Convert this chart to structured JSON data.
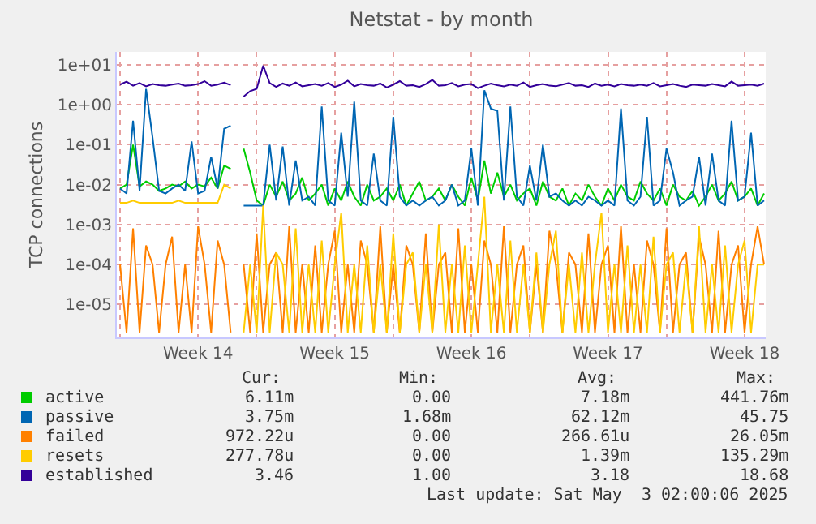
{
  "chart_data": {
    "type": "line",
    "title": "Netstat - by month",
    "ylabel": "TCP connections",
    "x": [
      "2025-03-31T00:00",
      "2025-03-31T08:00",
      "2025-03-31T16:00",
      "2025-04-01T00:00",
      "2025-04-01T08:00",
      "2025-04-01T16:00",
      "2025-04-02T00:00",
      "2025-04-02T08:00",
      "2025-04-02T16:00",
      "2025-04-03T00:00",
      "2025-04-03T08:00",
      "2025-04-03T16:00",
      "2025-04-04T00:00",
      "2025-04-04T08:00",
      "2025-04-04T16:00",
      "2025-04-05T00:00",
      "2025-04-05T08:00",
      "2025-04-05T16:00",
      "2025-04-06T00:00",
      "2025-04-06T08:00",
      "2025-04-06T16:00",
      "2025-04-07T00:00",
      "2025-04-07T08:00",
      "2025-04-07T16:00",
      "2025-04-08T00:00",
      "2025-04-08T08:00",
      "2025-04-08T16:00",
      "2025-04-09T00:00",
      "2025-04-09T08:00",
      "2025-04-09T16:00",
      "2025-04-10T00:00",
      "2025-04-10T08:00",
      "2025-04-10T16:00",
      "2025-04-11T00:00",
      "2025-04-11T08:00",
      "2025-04-11T16:00",
      "2025-04-12T00:00",
      "2025-04-12T08:00",
      "2025-04-12T16:00",
      "2025-04-13T00:00",
      "2025-04-13T08:00",
      "2025-04-13T16:00",
      "2025-04-14T00:00",
      "2025-04-14T08:00",
      "2025-04-14T16:00",
      "2025-04-15T00:00",
      "2025-04-15T08:00",
      "2025-04-15T16:00",
      "2025-04-16T00:00",
      "2025-04-16T08:00",
      "2025-04-16T16:00",
      "2025-04-17T00:00",
      "2025-04-17T08:00",
      "2025-04-17T16:00",
      "2025-04-18T00:00",
      "2025-04-18T08:00",
      "2025-04-18T16:00",
      "2025-04-19T00:00",
      "2025-04-19T08:00",
      "2025-04-19T16:00",
      "2025-04-20T00:00",
      "2025-04-20T08:00",
      "2025-04-20T16:00",
      "2025-04-21T00:00",
      "2025-04-21T08:00",
      "2025-04-21T16:00",
      "2025-04-22T00:00",
      "2025-04-22T08:00",
      "2025-04-22T16:00",
      "2025-04-23T00:00",
      "2025-04-23T08:00",
      "2025-04-23T16:00",
      "2025-04-24T00:00",
      "2025-04-24T08:00",
      "2025-04-24T16:00",
      "2025-04-25T00:00",
      "2025-04-25T08:00",
      "2025-04-25T16:00",
      "2025-04-26T00:00",
      "2025-04-26T08:00",
      "2025-04-26T16:00",
      "2025-04-27T00:00",
      "2025-04-27T08:00",
      "2025-04-27T16:00",
      "2025-04-28T00:00",
      "2025-04-28T08:00",
      "2025-04-28T16:00",
      "2025-04-29T00:00",
      "2025-04-29T08:00",
      "2025-04-29T16:00",
      "2025-04-30T00:00",
      "2025-04-30T08:00",
      "2025-04-30T16:00",
      "2025-05-01T00:00",
      "2025-05-01T08:00",
      "2025-05-01T16:00",
      "2025-05-02T00:00",
      "2025-05-02T08:00",
      "2025-05-02T16:00",
      "2025-05-03T00:00"
    ],
    "series": [
      {
        "name": "active",
        "color": "#00cc00",
        "values": [
          0.008,
          0.01,
          0.1,
          0.009,
          0.012,
          0.01,
          0.007,
          0.008,
          0.01,
          0.009,
          0.012,
          0.008,
          0.01,
          0.009,
          0.015,
          0.008,
          0.03,
          0.025,
          null,
          0.08,
          0.02,
          0.004,
          0.003,
          0.01,
          0.005,
          0.012,
          0.004,
          0.006,
          0.015,
          0.004,
          0.006,
          0.01,
          0.003,
          0.008,
          0.004,
          0.012,
          0.005,
          0.003,
          0.01,
          0.004,
          0.005,
          0.008,
          0.004,
          0.01,
          0.003,
          0.006,
          0.012,
          0.004,
          0.005,
          0.008,
          0.004,
          0.01,
          0.005,
          0.003,
          0.015,
          0.004,
          0.04,
          0.006,
          0.02,
          0.005,
          0.01,
          0.004,
          0.006,
          0.008,
          0.003,
          0.012,
          0.005,
          0.004,
          0.008,
          0.003,
          0.006,
          0.004,
          0.01,
          0.005,
          0.003,
          0.008,
          0.004,
          0.01,
          0.005,
          0.004,
          0.012,
          0.006,
          0.004,
          0.008,
          0.003,
          0.01,
          0.005,
          0.004,
          0.007,
          0.003,
          0.005,
          0.01,
          0.004,
          0.006,
          0.012,
          0.004,
          0.005,
          0.008,
          0.003,
          0.006
        ]
      },
      {
        "name": "passive",
        "color": "#0066b3",
        "values": [
          0.008,
          0.006,
          0.4,
          0.007,
          2.5,
          0.15,
          0.007,
          0.006,
          0.008,
          0.01,
          0.007,
          0.12,
          0.006,
          0.007,
          0.05,
          0.008,
          0.25,
          0.3,
          null,
          0.003,
          0.003,
          0.003,
          0.003,
          0.1,
          0.004,
          0.09,
          0.003,
          0.04,
          0.004,
          0.005,
          0.003,
          0.9,
          0.004,
          0.003,
          0.2,
          0.005,
          1.2,
          0.004,
          0.003,
          0.06,
          0.004,
          0.003,
          0.5,
          0.005,
          0.003,
          0.004,
          0.003,
          0.004,
          0.005,
          0.003,
          0.004,
          0.01,
          0.003,
          0.004,
          0.08,
          0.003,
          2.3,
          0.8,
          0.7,
          0.004,
          0.9,
          0.005,
          0.003,
          0.03,
          0.004,
          0.1,
          0.005,
          0.006,
          0.004,
          0.003,
          0.004,
          0.003,
          0.005,
          0.004,
          0.003,
          0.004,
          0.003,
          0.8,
          0.004,
          0.003,
          0.005,
          0.5,
          0.003,
          0.004,
          0.08,
          0.02,
          0.003,
          0.004,
          0.005,
          0.05,
          0.003,
          0.06,
          0.004,
          0.003,
          0.4,
          0.004,
          0.005,
          0.2,
          0.003,
          0.004
        ]
      },
      {
        "name": "failed",
        "color": "#ff8000",
        "values": [
          0.0001,
          2e-06,
          0.0008,
          2e-06,
          0.0003,
          0.0001,
          2e-06,
          0.0001,
          0.0005,
          2e-06,
          0.0001,
          2e-06,
          0.0009,
          0.0001,
          2e-06,
          0.0004,
          0.0001,
          2e-06,
          null,
          0.0001,
          2e-06,
          0.0006,
          2e-06,
          0.0001,
          0.0002,
          2e-06,
          0.0009,
          2e-06,
          0.0001,
          2e-06,
          0.0003,
          2e-06,
          0.0001,
          0.0007,
          2e-06,
          0.0001,
          2e-06,
          0.0004,
          0.0001,
          2e-06,
          0.0009,
          2e-06,
          0.0001,
          2e-06,
          0.0003,
          0.0001,
          2e-06,
          0.0006,
          2e-06,
          0.0001,
          0.0002,
          2e-06,
          0.0008,
          2e-06,
          0.0001,
          2e-06,
          0.0004,
          0.0001,
          2e-06,
          0.0009,
          2e-06,
          0.0001,
          0.0003,
          2e-06,
          0.0001,
          2e-06,
          0.0007,
          0.0001,
          2e-06,
          0.0002,
          0.0001,
          2e-06,
          0.0006,
          2e-06,
          0.0001,
          0.0003,
          2e-06,
          0.0009,
          2e-06,
          0.0001,
          2e-06,
          0.0004,
          0.0001,
          2e-06,
          0.0008,
          2e-06,
          0.0001,
          0.0002,
          2e-06,
          0.0005,
          0.0001,
          2e-06,
          0.0007,
          2e-06,
          0.0001,
          0.0003,
          2e-06,
          0.0001,
          0.0009,
          0.0001
        ]
      },
      {
        "name": "resets",
        "color": "#ffcc00",
        "values": [
          0.0035,
          0.0035,
          0.004,
          0.0035,
          0.0035,
          0.0035,
          0.0035,
          0.0035,
          0.0035,
          0.004,
          0.0035,
          0.0035,
          0.0035,
          0.0035,
          0.0035,
          0.0035,
          0.01,
          0.008,
          null,
          2e-06,
          0.0001,
          2e-06,
          0.003,
          2e-06,
          0.0002,
          0.0001,
          2e-06,
          0.0008,
          2e-06,
          0.0001,
          2e-06,
          0.0004,
          2e-06,
          0.0001,
          0.002,
          2e-06,
          0.0001,
          2e-06,
          0.0003,
          2e-06,
          0.0001,
          2e-06,
          0.0006,
          2e-06,
          0.0001,
          0.0002,
          2e-06,
          0.0001,
          2e-06,
          0.001,
          2e-06,
          0.0001,
          2e-06,
          0.0003,
          2e-06,
          0.0001,
          0.005,
          2e-06,
          0.0001,
          2e-06,
          0.0004,
          2e-06,
          0.0001,
          2e-06,
          0.0002,
          2e-06,
          0.0001,
          0.0007,
          2e-06,
          0.0001,
          2e-06,
          0.0002,
          2e-06,
          0.0001,
          0.002,
          2e-06,
          0.0001,
          2e-06,
          0.0003,
          2e-06,
          0.0001,
          2e-06,
          0.0005,
          2e-06,
          0.0001,
          0.0002,
          2e-06,
          0.0001,
          2e-06,
          0.0009,
          2e-06,
          0.0001,
          2e-06,
          0.0003,
          2e-06,
          0.0001,
          0.0004,
          2e-06,
          0.0001,
          0.0001
        ]
      },
      {
        "name": "established",
        "color": "#330099",
        "values": [
          3.2,
          3.8,
          3.0,
          3.5,
          2.9,
          3.3,
          3.1,
          3.0,
          3.2,
          3.4,
          3.0,
          3.1,
          3.3,
          3.9,
          3.0,
          3.2,
          3.6,
          3.1,
          null,
          1.6,
          2.2,
          2.5,
          9.5,
          3.5,
          2.8,
          3.4,
          3.0,
          3.6,
          2.9,
          3.1,
          3.3,
          3.0,
          3.5,
          2.8,
          3.2,
          4.0,
          2.9,
          3.3,
          3.1,
          3.0,
          3.4,
          2.7,
          3.2,
          3.9,
          3.0,
          3.1,
          2.8,
          3.3,
          4.2,
          3.0,
          3.1,
          3.5,
          2.9,
          3.2,
          3.3,
          2.6,
          3.0,
          3.4,
          3.1,
          2.9,
          3.2,
          3.0,
          3.6,
          2.8,
          3.1,
          3.3,
          3.0,
          2.9,
          3.2,
          3.5,
          3.0,
          3.1,
          2.8,
          3.4,
          3.0,
          3.2,
          2.9,
          3.3,
          3.1,
          3.0,
          3.2,
          3.0,
          3.5,
          2.9,
          3.1,
          3.3,
          3.0,
          2.8,
          3.2,
          3.1,
          3.0,
          3.3,
          3.1,
          2.9,
          3.8,
          3.0,
          3.1,
          3.2,
          3.0,
          3.4
        ]
      }
    ],
    "log": "y",
    "xlim": [
      "2025-03-30T20:00",
      "2025-05-03T02:00"
    ],
    "xticks": [
      {
        "value": "2025-03-31",
        "label": null
      },
      {
        "value": "2025-04-04",
        "label": "Week 14"
      },
      {
        "value": "2025-04-07",
        "label": null
      },
      {
        "value": "2025-04-11",
        "label": "Week 15"
      },
      {
        "value": "2025-04-14",
        "label": null
      },
      {
        "value": "2025-04-18",
        "label": "Week 16"
      },
      {
        "value": "2025-04-21",
        "label": null
      },
      {
        "value": "2025-04-25",
        "label": "Week 17"
      },
      {
        "value": "2025-04-28",
        "label": null
      },
      {
        "value": "2025-05-02",
        "label": "Week 18"
      }
    ],
    "ylim": [
      1.5e-06,
      21
    ],
    "yticks": [
      {
        "value": 1e-05,
        "label": "1e-05"
      },
      {
        "value": 0.0001,
        "label": "1e-04"
      },
      {
        "value": 0.001,
        "label": "1e-03"
      },
      {
        "value": 0.01,
        "label": "1e-02"
      },
      {
        "value": 0.1,
        "label": "1e-01"
      },
      {
        "value": 1,
        "label": "1e+00"
      },
      {
        "value": 10,
        "label": "1e+01"
      }
    ],
    "grid": true,
    "legend": "bottom",
    "marker": "none",
    "line_style": "solid",
    "annotations": [
      "Cur:",
      "Min:",
      "Avg:",
      "Max:",
      "6.11m",
      "0.00",
      "7.18m",
      "441.76m",
      "3.75m",
      "1.68m",
      "62.12m",
      "45.75",
      "972.22u",
      "0.00",
      "266.61u",
      "26.05m",
      "277.78u",
      "0.00",
      "1.39m",
      "135.29m",
      "3.46",
      "1.00",
      "3.18",
      "18.68",
      "Last update: Sat May  3 02:00:06 2025"
    ]
  }
}
